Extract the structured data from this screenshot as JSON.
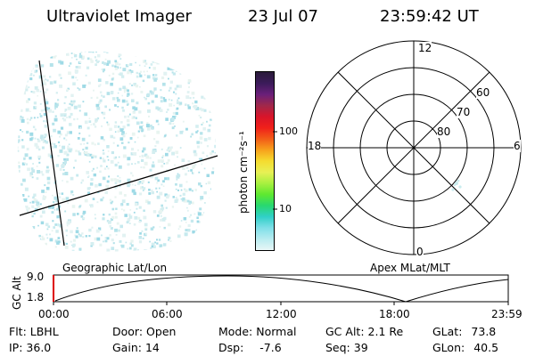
{
  "header": {
    "instrument": "Ultraviolet Imager",
    "date": "23 Jul 07",
    "time": "23:59:42 UT"
  },
  "colorbar": {
    "unit_label": "photon cm⁻²s⁻¹",
    "ticks": [
      "100",
      "10"
    ],
    "colors": [
      "#2a1b3a",
      "#3b1b5a",
      "#6a1f7a",
      "#a0284a",
      "#d8142a",
      "#f0201a",
      "#f25c18",
      "#f7a21c",
      "#f5dc30",
      "#e8f055",
      "#a8f040",
      "#5ee830",
      "#28d870",
      "#30d0c8",
      "#7fdfe8",
      "#b8ecf0",
      "#e8f6f6"
    ]
  },
  "polar_grid": {
    "mlt_labels": {
      "top": "12",
      "left": "18",
      "right": "6",
      "bottom": "0"
    },
    "lat_labels": [
      "60",
      "70",
      "80"
    ]
  },
  "altitude_plot": {
    "ylabel": "GC Alt",
    "yticks": [
      "9.0",
      "1.8"
    ],
    "left_label": "Geographic Lat/Lon",
    "right_label": "Apex MLat/MLT",
    "xticks": [
      "00:00",
      "06:00",
      "12:00",
      "18:00",
      "23:59"
    ]
  },
  "info_panel": {
    "row1": [
      {
        "label": "Flt:",
        "value": "LBHL"
      },
      {
        "label": "Door:",
        "value": "Open"
      },
      {
        "label": "Mode:",
        "value": "Normal"
      },
      {
        "label": "GC Alt:",
        "value": "2.1 Re"
      },
      {
        "label": "GLat:",
        "value": "73.8"
      }
    ],
    "row2": [
      {
        "label": "IP:",
        "value": "36.0"
      },
      {
        "label": "Gain:",
        "value": "14"
      },
      {
        "label": "Dsp:",
        "value": "-7.6"
      },
      {
        "label": "Seq:",
        "value": "39"
      },
      {
        "label": "GLon:",
        "value": "40.5"
      }
    ]
  }
}
